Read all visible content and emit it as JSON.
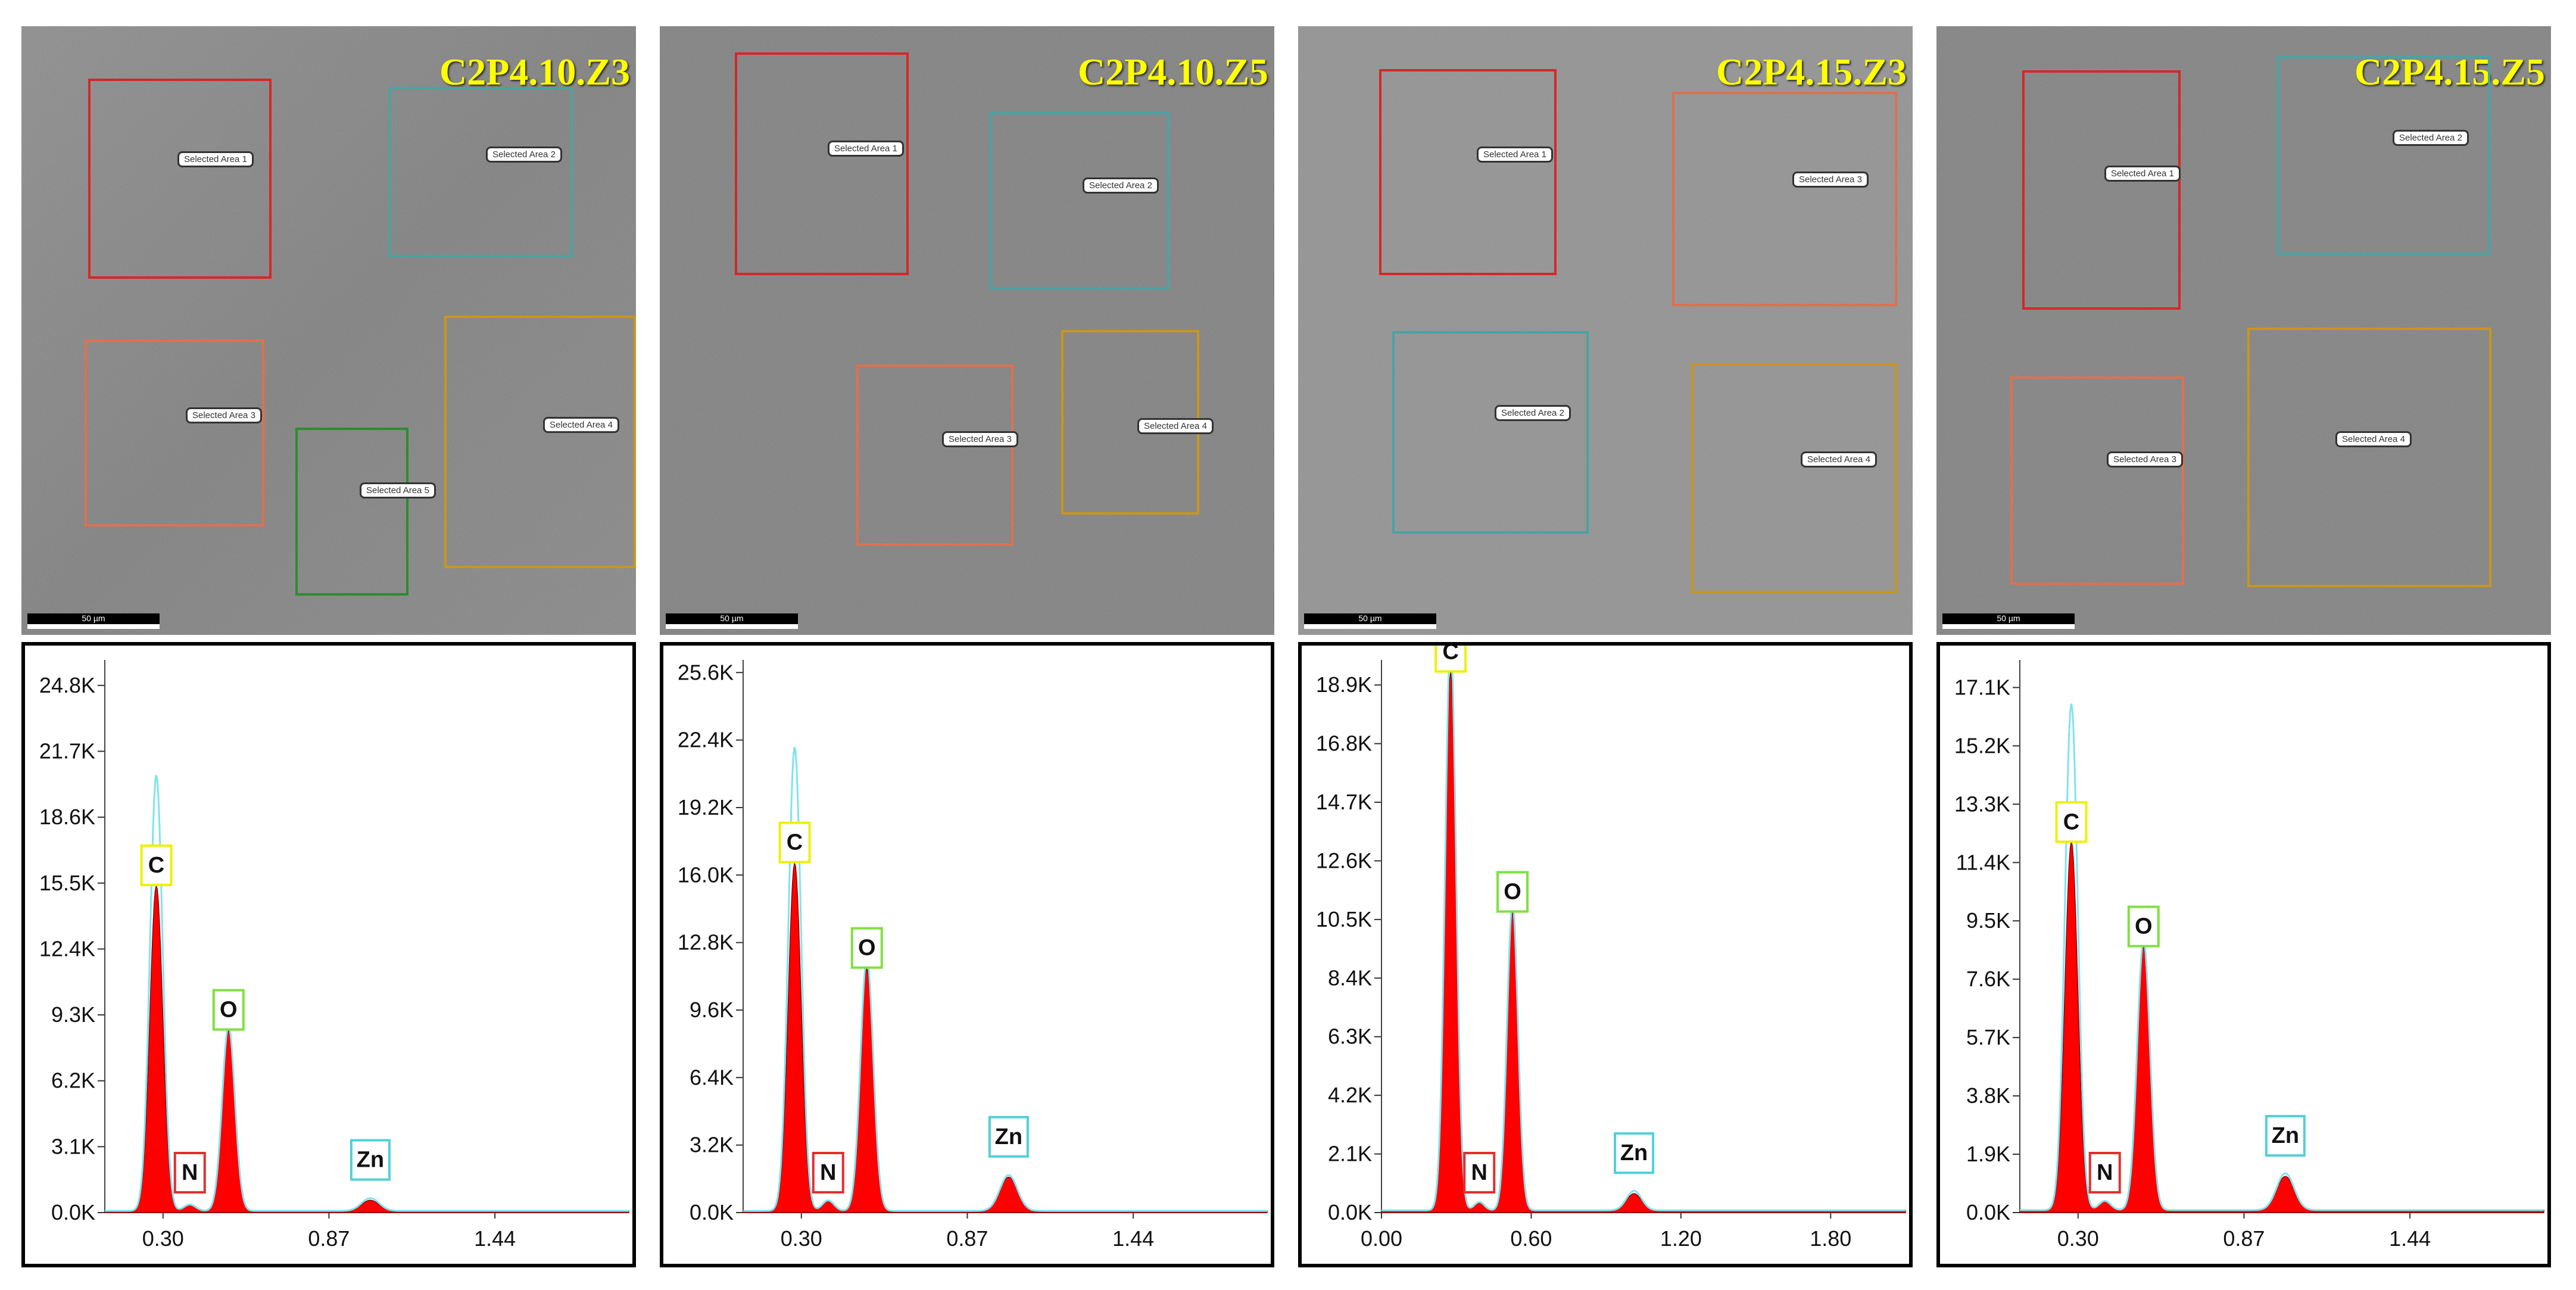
{
  "panels": [
    {
      "title": "C2P4.10.Z3",
      "scale_bar": "50 µm",
      "areas": [
        {
          "label": "Selected Area 1",
          "color": "#d62728"
        },
        {
          "label": "Selected Area 2",
          "color": "#4aa3a3"
        },
        {
          "label": "Selected Area 3",
          "color": "#e07050"
        },
        {
          "label": "Selected Area 4",
          "color": "#c8961e"
        },
        {
          "label": "Selected Area 5",
          "color": "#2e8b2e"
        }
      ]
    },
    {
      "title": "C2P4.10.Z5",
      "scale_bar": "50 µm",
      "areas": [
        {
          "label": "Selected Area 1",
          "color": "#d62728"
        },
        {
          "label": "Selected Area 2",
          "color": "#4aa3a3"
        },
        {
          "label": "Selected Area 3",
          "color": "#e07050"
        },
        {
          "label": "Selected Area 4",
          "color": "#c8961e"
        }
      ]
    },
    {
      "title": "C2P4.15.Z3",
      "scale_bar": "50 µm",
      "areas": [
        {
          "label": "Selected Area 1",
          "color": "#d62728"
        },
        {
          "label": "Selected Area 3",
          "color": "#e07050"
        },
        {
          "label": "Selected Area 2",
          "color": "#4aa3a3"
        },
        {
          "label": "Selected Area 4",
          "color": "#c8961e"
        }
      ]
    },
    {
      "title": "C2P4.15.Z5",
      "scale_bar": "50 µm",
      "areas": [
        {
          "label": "Selected Area 1",
          "color": "#d62728"
        },
        {
          "label": "Selected Area 2",
          "color": "#4aa3a3"
        },
        {
          "label": "Selected Area 3",
          "color": "#e07050"
        },
        {
          "label": "Selected Area 4",
          "color": "#c8961e"
        }
      ]
    }
  ],
  "colors": {
    "fill": "#ff0000",
    "fit_line": "#7fe3f0",
    "C_box": "#f0f000",
    "O_box": "#80e040",
    "N_box": "#e03030",
    "Zn_box": "#50d0d8",
    "title": "#ffff00"
  },
  "chart_data": [
    {
      "type": "area",
      "title": "C2P4.10.Z3",
      "ylim": [
        0,
        26.0
      ],
      "yticks": [
        "0.0K",
        "3.1K",
        "6.2K",
        "9.3K",
        "12.4K",
        "15.5K",
        "18.6K",
        "21.7K",
        "24.8K"
      ],
      "xlim": [
        0.1,
        1.9
      ],
      "xticks": [
        "0.30",
        "0.87",
        "1.44"
      ],
      "peaks": [
        {
          "element": "C",
          "x": 0.277,
          "y": 15.3,
          "fit_y": 20.5
        },
        {
          "element": "N",
          "x": 0.392,
          "y": 0.3,
          "fit_y": 0.3
        },
        {
          "element": "O",
          "x": 0.525,
          "y": 8.5,
          "fit_y": 8.7
        },
        {
          "element": "Zn",
          "x": 1.012,
          "y": 0.5,
          "fit_y": 0.6
        }
      ]
    },
    {
      "type": "area",
      "title": "C2P4.10.Z5",
      "ylim": [
        0,
        26.2
      ],
      "yticks": [
        "0.0K",
        "3.2K",
        "6.4K",
        "9.6K",
        "12.8K",
        "16.0K",
        "19.2K",
        "22.4K",
        "25.6K"
      ],
      "xlim": [
        0.1,
        1.9
      ],
      "xticks": [
        "0.30",
        "0.87",
        "1.44"
      ],
      "peaks": [
        {
          "element": "C",
          "x": 0.277,
          "y": 16.5,
          "fit_y": 22.0
        },
        {
          "element": "N",
          "x": 0.392,
          "y": 0.5,
          "fit_y": 0.5
        },
        {
          "element": "O",
          "x": 0.525,
          "y": 11.5,
          "fit_y": 12.0
        },
        {
          "element": "Zn",
          "x": 1.012,
          "y": 1.6,
          "fit_y": 1.7
        }
      ]
    },
    {
      "type": "area",
      "title": "C2P4.15.Z3",
      "ylim": [
        0,
        19.8
      ],
      "yticks": [
        "0.0K",
        "2.1K",
        "4.2K",
        "6.3K",
        "8.4K",
        "10.5K",
        "12.6K",
        "14.7K",
        "16.8K",
        "18.9K"
      ],
      "xlim": [
        0.0,
        2.1
      ],
      "xticks": [
        "0.00",
        "0.60",
        "1.20",
        "1.80"
      ],
      "peaks": [
        {
          "element": "C",
          "x": 0.277,
          "y": 19.3,
          "fit_y": 20.5
        },
        {
          "element": "N",
          "x": 0.392,
          "y": 0.3,
          "fit_y": 0.3
        },
        {
          "element": "O",
          "x": 0.525,
          "y": 10.7,
          "fit_y": 11.0
        },
        {
          "element": "Zn",
          "x": 1.012,
          "y": 0.6,
          "fit_y": 0.7
        }
      ]
    },
    {
      "type": "area",
      "title": "C2P4.15.Z5",
      "ylim": [
        0,
        18.0
      ],
      "yticks": [
        "0.0K",
        "1.9K",
        "3.8K",
        "5.7K",
        "7.6K",
        "9.5K",
        "11.4K",
        "13.3K",
        "15.2K",
        "17.1K"
      ],
      "xlim": [
        0.1,
        1.9
      ],
      "xticks": [
        "0.30",
        "0.87",
        "1.44"
      ],
      "peaks": [
        {
          "element": "C",
          "x": 0.277,
          "y": 12.0,
          "fit_y": 16.5
        },
        {
          "element": "N",
          "x": 0.392,
          "y": 0.3,
          "fit_y": 0.3
        },
        {
          "element": "O",
          "x": 0.525,
          "y": 8.6,
          "fit_y": 8.8
        },
        {
          "element": "Zn",
          "x": 1.012,
          "y": 1.1,
          "fit_y": 1.2
        }
      ]
    }
  ]
}
